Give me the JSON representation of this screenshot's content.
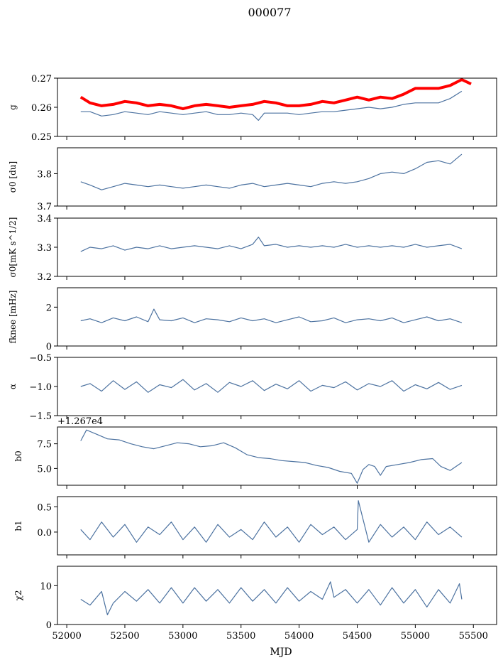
{
  "figure": {
    "title": "000077",
    "xlabel": "MJD"
  },
  "colors": {
    "series": "#4c72a0",
    "model": "#ff0000"
  },
  "chart_data": [
    {
      "type": "line",
      "ylabel": "g",
      "ylim": [
        0.25,
        0.27
      ],
      "yticks": [
        "0.25",
        "0.26",
        "0.27"
      ],
      "ytick_values": [
        0.25,
        0.26,
        0.27
      ],
      "xlim": [
        51920,
        55700
      ],
      "series": [
        {
          "color": "#4c72a0",
          "x": [
            52120,
            52200,
            52300,
            52400,
            52500,
            52600,
            52700,
            52800,
            52900,
            53000,
            53100,
            53200,
            53300,
            53400,
            53500,
            53600,
            53650,
            53700,
            53800,
            53900,
            54000,
            54100,
            54200,
            54300,
            54400,
            54500,
            54600,
            54700,
            54800,
            54900,
            55000,
            55100,
            55200,
            55300,
            55400
          ],
          "values": [
            0.2585,
            0.2585,
            0.257,
            0.2575,
            0.2585,
            0.258,
            0.2575,
            0.2585,
            0.258,
            0.2575,
            0.258,
            0.2585,
            0.2575,
            0.2575,
            0.258,
            0.2575,
            0.2555,
            0.258,
            0.258,
            0.258,
            0.2575,
            0.258,
            0.2585,
            0.2585,
            0.259,
            0.2595,
            0.26,
            0.2595,
            0.26,
            0.261,
            0.2615,
            0.2615,
            0.2615,
            0.263,
            0.2655
          ]
        },
        {
          "color": "#ff0000",
          "x": [
            52120,
            52200,
            52300,
            52400,
            52500,
            52600,
            52700,
            52800,
            52900,
            53000,
            53100,
            53200,
            53300,
            53400,
            53500,
            53600,
            53700,
            53800,
            53900,
            54000,
            54100,
            54200,
            54300,
            54400,
            54500,
            54600,
            54700,
            54800,
            54900,
            55000,
            55100,
            55200,
            55300,
            55400,
            55480
          ],
          "values": [
            0.2635,
            0.2615,
            0.2605,
            0.261,
            0.262,
            0.2615,
            0.2605,
            0.261,
            0.2605,
            0.2595,
            0.2605,
            0.261,
            0.2605,
            0.26,
            0.2605,
            0.261,
            0.262,
            0.2615,
            0.2605,
            0.2605,
            0.261,
            0.262,
            0.2615,
            0.2625,
            0.2635,
            0.2625,
            0.2635,
            0.263,
            0.2645,
            0.2665,
            0.2665,
            0.2665,
            0.2675,
            0.2695,
            0.268
          ]
        }
      ]
    },
    {
      "type": "line",
      "ylabel": "σ0 [du]",
      "ylim": [
        3.7,
        3.88
      ],
      "yticks": [
        "3.7",
        "3.8"
      ],
      "ytick_values": [
        3.7,
        3.8
      ],
      "xlim": [
        51920,
        55700
      ],
      "series": [
        {
          "color": "#4c72a0",
          "x": [
            52120,
            52200,
            52300,
            52400,
            52500,
            52600,
            52700,
            52800,
            52900,
            53000,
            53100,
            53200,
            53300,
            53400,
            53500,
            53600,
            53700,
            53800,
            53900,
            54000,
            54100,
            54200,
            54300,
            54400,
            54500,
            54600,
            54700,
            54800,
            54900,
            55000,
            55100,
            55200,
            55300,
            55400
          ],
          "values": [
            3.775,
            3.765,
            3.75,
            3.76,
            3.77,
            3.765,
            3.76,
            3.765,
            3.76,
            3.755,
            3.76,
            3.765,
            3.76,
            3.755,
            3.765,
            3.77,
            3.76,
            3.765,
            3.77,
            3.765,
            3.76,
            3.77,
            3.775,
            3.77,
            3.775,
            3.785,
            3.8,
            3.805,
            3.8,
            3.815,
            3.835,
            3.84,
            3.83,
            3.86
          ]
        }
      ]
    },
    {
      "type": "line",
      "ylabel": "σ0[mK s^1/2]",
      "ylim": [
        3.2,
        3.4
      ],
      "yticks": [
        "3.2",
        "3.3",
        "3.4"
      ],
      "ytick_values": [
        3.2,
        3.3,
        3.4
      ],
      "xlim": [
        51920,
        55700
      ],
      "series": [
        {
          "color": "#4c72a0",
          "x": [
            52120,
            52200,
            52300,
            52400,
            52500,
            52600,
            52700,
            52800,
            52900,
            53000,
            53100,
            53200,
            53300,
            53400,
            53500,
            53600,
            53650,
            53700,
            53800,
            53900,
            54000,
            54100,
            54200,
            54300,
            54400,
            54500,
            54600,
            54700,
            54800,
            54900,
            55000,
            55100,
            55200,
            55300,
            55400
          ],
          "values": [
            3.285,
            3.3,
            3.295,
            3.305,
            3.29,
            3.3,
            3.295,
            3.305,
            3.295,
            3.3,
            3.305,
            3.3,
            3.295,
            3.305,
            3.295,
            3.31,
            3.335,
            3.305,
            3.31,
            3.3,
            3.305,
            3.3,
            3.305,
            3.3,
            3.31,
            3.3,
            3.305,
            3.3,
            3.305,
            3.3,
            3.31,
            3.3,
            3.305,
            3.31,
            3.295
          ]
        }
      ]
    },
    {
      "type": "line",
      "ylabel": "fknee [mHz]",
      "ylim": [
        0,
        3
      ],
      "yticks": [
        "0",
        "2"
      ],
      "ytick_values": [
        0,
        2
      ],
      "xlim": [
        51920,
        55700
      ],
      "series": [
        {
          "color": "#4c72a0",
          "x": [
            52120,
            52200,
            52300,
            52400,
            52500,
            52600,
            52700,
            52750,
            52800,
            52900,
            53000,
            53100,
            53200,
            53300,
            53400,
            53500,
            53600,
            53700,
            53800,
            53900,
            54000,
            54100,
            54200,
            54300,
            54400,
            54500,
            54600,
            54700,
            54800,
            54900,
            55000,
            55100,
            55200,
            55300,
            55400
          ],
          "values": [
            1.3,
            1.4,
            1.2,
            1.45,
            1.3,
            1.5,
            1.25,
            1.9,
            1.35,
            1.3,
            1.45,
            1.2,
            1.4,
            1.35,
            1.25,
            1.45,
            1.3,
            1.4,
            1.2,
            1.35,
            1.5,
            1.25,
            1.3,
            1.45,
            1.2,
            1.35,
            1.4,
            1.3,
            1.45,
            1.2,
            1.35,
            1.5,
            1.3,
            1.4,
            1.2
          ]
        }
      ]
    },
    {
      "type": "line",
      "ylabel": "α",
      "ylim": [
        -1.5,
        -0.5
      ],
      "yticks": [
        "−1.5",
        "−1.0",
        "−0.5"
      ],
      "ytick_values": [
        -1.5,
        -1.0,
        -0.5
      ],
      "xlim": [
        51920,
        55700
      ],
      "series": [
        {
          "color": "#4c72a0",
          "x": [
            52120,
            52200,
            52300,
            52400,
            52500,
            52600,
            52700,
            52800,
            52900,
            53000,
            53100,
            53200,
            53300,
            53400,
            53500,
            53600,
            53700,
            53800,
            53900,
            54000,
            54100,
            54200,
            54300,
            54400,
            54500,
            54600,
            54700,
            54800,
            54900,
            55000,
            55100,
            55200,
            55300,
            55400
          ],
          "values": [
            -1.0,
            -0.95,
            -1.08,
            -0.9,
            -1.05,
            -0.92,
            -1.1,
            -0.97,
            -1.02,
            -0.88,
            -1.06,
            -0.95,
            -1.1,
            -0.93,
            -1.0,
            -0.9,
            -1.07,
            -0.96,
            -1.04,
            -0.9,
            -1.08,
            -0.98,
            -1.02,
            -0.92,
            -1.06,
            -0.95,
            -1.0,
            -0.9,
            -1.08,
            -0.97,
            -1.04,
            -0.93,
            -1.05,
            -0.98
          ]
        }
      ]
    },
    {
      "type": "line",
      "ylabel": "b0",
      "offset_label": "+1.267e4",
      "ylim": [
        3.3,
        9.2
      ],
      "yticks": [
        "5.0",
        "7.5"
      ],
      "ytick_values": [
        5.0,
        7.5
      ],
      "xlim": [
        51920,
        55700
      ],
      "series": [
        {
          "color": "#4c72a0",
          "x": [
            52120,
            52170,
            52250,
            52350,
            52450,
            52550,
            52650,
            52750,
            52850,
            52950,
            53050,
            53150,
            53250,
            53350,
            53450,
            53550,
            53650,
            53750,
            53850,
            53950,
            54050,
            54150,
            54250,
            54350,
            54450,
            54500,
            54550,
            54600,
            54650,
            54700,
            54750,
            54850,
            54950,
            55050,
            55150,
            55220,
            55300,
            55400
          ],
          "values": [
            7.8,
            8.9,
            8.5,
            8.0,
            7.9,
            7.5,
            7.2,
            7.0,
            7.3,
            7.6,
            7.5,
            7.2,
            7.3,
            7.6,
            7.1,
            6.4,
            6.1,
            6.0,
            5.8,
            5.7,
            5.6,
            5.3,
            5.1,
            4.7,
            4.5,
            3.5,
            4.9,
            5.4,
            5.2,
            4.3,
            5.2,
            5.4,
            5.6,
            5.9,
            6.0,
            5.2,
            4.8,
            5.6
          ]
        }
      ]
    },
    {
      "type": "line",
      "ylabel": "b1",
      "ylim": [
        -0.45,
        0.7
      ],
      "yticks": [
        "0.0",
        "0.5"
      ],
      "ytick_values": [
        0.0,
        0.5
      ],
      "xlim": [
        51920,
        55700
      ],
      "series": [
        {
          "color": "#4c72a0",
          "x": [
            52120,
            52200,
            52300,
            52400,
            52500,
            52600,
            52700,
            52800,
            52900,
            53000,
            53100,
            53200,
            53300,
            53400,
            53500,
            53600,
            53700,
            53800,
            53900,
            54000,
            54100,
            54200,
            54300,
            54400,
            54500,
            54510,
            54600,
            54700,
            54800,
            54900,
            55000,
            55100,
            55200,
            55300,
            55400
          ],
          "values": [
            0.05,
            -0.15,
            0.2,
            -0.1,
            0.15,
            -0.2,
            0.1,
            -0.05,
            0.2,
            -0.15,
            0.1,
            -0.2,
            0.15,
            -0.1,
            0.05,
            -0.15,
            0.2,
            -0.1,
            0.1,
            -0.2,
            0.15,
            -0.05,
            0.1,
            -0.15,
            0.05,
            0.62,
            -0.2,
            0.15,
            -0.1,
            0.1,
            -0.15,
            0.2,
            -0.05,
            0.1,
            -0.1
          ]
        }
      ]
    },
    {
      "type": "line",
      "ylabel": "χ2",
      "ylim": [
        0,
        15
      ],
      "yticks": [
        "0",
        "10"
      ],
      "ytick_values": [
        0,
        10
      ],
      "xlim": [
        51920,
        55700
      ],
      "series": [
        {
          "color": "#4c72a0",
          "x": [
            52120,
            52200,
            52300,
            52350,
            52400,
            52500,
            52600,
            52700,
            52800,
            52900,
            53000,
            53100,
            53200,
            53300,
            53400,
            53500,
            53600,
            53700,
            53800,
            53900,
            54000,
            54100,
            54200,
            54270,
            54300,
            54400,
            54500,
            54600,
            54700,
            54800,
            54900,
            55000,
            55100,
            55200,
            55300,
            55380,
            55400
          ],
          "values": [
            6.5,
            5.0,
            8.5,
            2.5,
            5.5,
            8.5,
            6.0,
            9.0,
            5.5,
            9.5,
            5.5,
            9.5,
            6.0,
            9.0,
            5.5,
            9.5,
            6.0,
            9.0,
            5.5,
            9.5,
            6.0,
            8.5,
            6.5,
            11.0,
            7.0,
            9.0,
            5.5,
            9.0,
            5.0,
            9.5,
            5.5,
            9.0,
            4.5,
            9.0,
            5.5,
            10.5,
            6.5
          ]
        }
      ]
    }
  ],
  "xaxis": {
    "ticks": [
      "52000",
      "52500",
      "53000",
      "53500",
      "54000",
      "54500",
      "55000",
      "55500"
    ],
    "tick_values": [
      52000,
      52500,
      53000,
      53500,
      54000,
      54500,
      55000,
      55500
    ]
  }
}
